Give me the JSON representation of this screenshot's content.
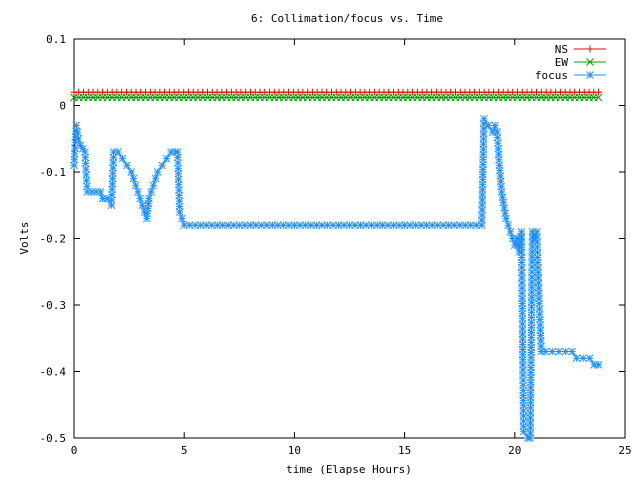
{
  "chart_data": {
    "type": "line",
    "title": "6: Collimation/focus vs. Time",
    "xlabel": "time (Elapse Hours)",
    "ylabel": "Volts",
    "xlim": [
      0,
      25
    ],
    "ylim": [
      -0.5,
      0.1
    ],
    "xticks": [
      0,
      5,
      10,
      15,
      20,
      25
    ],
    "yticks": [
      0.1,
      0,
      -0.1,
      -0.2,
      -0.3,
      -0.4,
      -0.5
    ],
    "xtick_labels": [
      "0",
      "5",
      "10",
      "15",
      "20",
      "25"
    ],
    "ytick_labels": [
      "0.1",
      "0",
      "-0.1",
      "-0.2",
      "-0.3",
      "-0.4",
      "-0.5"
    ],
    "grid": false,
    "legend_position": "top-right",
    "series": [
      {
        "name": "NS",
        "color": "#ff0000",
        "marker": "plus",
        "points": [
          [
            0,
            0.02
          ],
          [
            23.8,
            0.02
          ]
        ]
      },
      {
        "name": "EW",
        "color": "#00a000",
        "marker": "cross",
        "points": [
          [
            0,
            0.012
          ],
          [
            23.8,
            0.012
          ]
        ]
      },
      {
        "name": "focus",
        "color": "#1e90ff",
        "marker": "star",
        "points": [
          [
            0.0,
            -0.09
          ],
          [
            0.1,
            -0.03
          ],
          [
            0.2,
            -0.05
          ],
          [
            0.3,
            -0.06
          ],
          [
            0.4,
            -0.065
          ],
          [
            0.5,
            -0.07
          ],
          [
            0.6,
            -0.13
          ],
          [
            0.8,
            -0.13
          ],
          [
            1.0,
            -0.13
          ],
          [
            1.2,
            -0.13
          ],
          [
            1.3,
            -0.14
          ],
          [
            1.5,
            -0.14
          ],
          [
            1.7,
            -0.15
          ],
          [
            1.8,
            -0.07
          ],
          [
            2.0,
            -0.07
          ],
          [
            2.2,
            -0.08
          ],
          [
            2.4,
            -0.09
          ],
          [
            2.6,
            -0.1
          ],
          [
            2.8,
            -0.12
          ],
          [
            3.0,
            -0.14
          ],
          [
            3.2,
            -0.16
          ],
          [
            3.3,
            -0.17
          ],
          [
            3.4,
            -0.14
          ],
          [
            3.6,
            -0.12
          ],
          [
            3.8,
            -0.1
          ],
          [
            4.0,
            -0.09
          ],
          [
            4.2,
            -0.08
          ],
          [
            4.4,
            -0.07
          ],
          [
            4.6,
            -0.07
          ],
          [
            4.7,
            -0.07
          ],
          [
            4.8,
            -0.16
          ],
          [
            5.0,
            -0.18
          ],
          [
            6.0,
            -0.18
          ],
          [
            7.0,
            -0.18
          ],
          [
            8.0,
            -0.18
          ],
          [
            9.0,
            -0.18
          ],
          [
            10.0,
            -0.18
          ],
          [
            11.0,
            -0.18
          ],
          [
            12.0,
            -0.18
          ],
          [
            13.0,
            -0.18
          ],
          [
            14.0,
            -0.18
          ],
          [
            15.0,
            -0.18
          ],
          [
            16.0,
            -0.18
          ],
          [
            17.0,
            -0.18
          ],
          [
            18.0,
            -0.18
          ],
          [
            18.5,
            -0.18
          ],
          [
            18.6,
            -0.02
          ],
          [
            18.8,
            -0.03
          ],
          [
            19.0,
            -0.04
          ],
          [
            19.1,
            -0.03
          ],
          [
            19.2,
            -0.04
          ],
          [
            19.3,
            -0.09
          ],
          [
            19.4,
            -0.13
          ],
          [
            19.6,
            -0.17
          ],
          [
            19.8,
            -0.19
          ],
          [
            20.0,
            -0.21
          ],
          [
            20.1,
            -0.2
          ],
          [
            20.2,
            -0.22
          ],
          [
            20.3,
            -0.19
          ],
          [
            20.4,
            -0.49
          ],
          [
            20.6,
            -0.5
          ],
          [
            20.7,
            -0.5
          ],
          [
            20.8,
            -0.19
          ],
          [
            20.9,
            -0.2
          ],
          [
            21.0,
            -0.19
          ],
          [
            21.1,
            -0.29
          ],
          [
            21.2,
            -0.37
          ],
          [
            21.4,
            -0.37
          ],
          [
            22.0,
            -0.37
          ],
          [
            22.6,
            -0.37
          ],
          [
            22.8,
            -0.38
          ],
          [
            23.4,
            -0.38
          ],
          [
            23.6,
            -0.39
          ],
          [
            23.8,
            -0.39
          ]
        ]
      }
    ]
  }
}
